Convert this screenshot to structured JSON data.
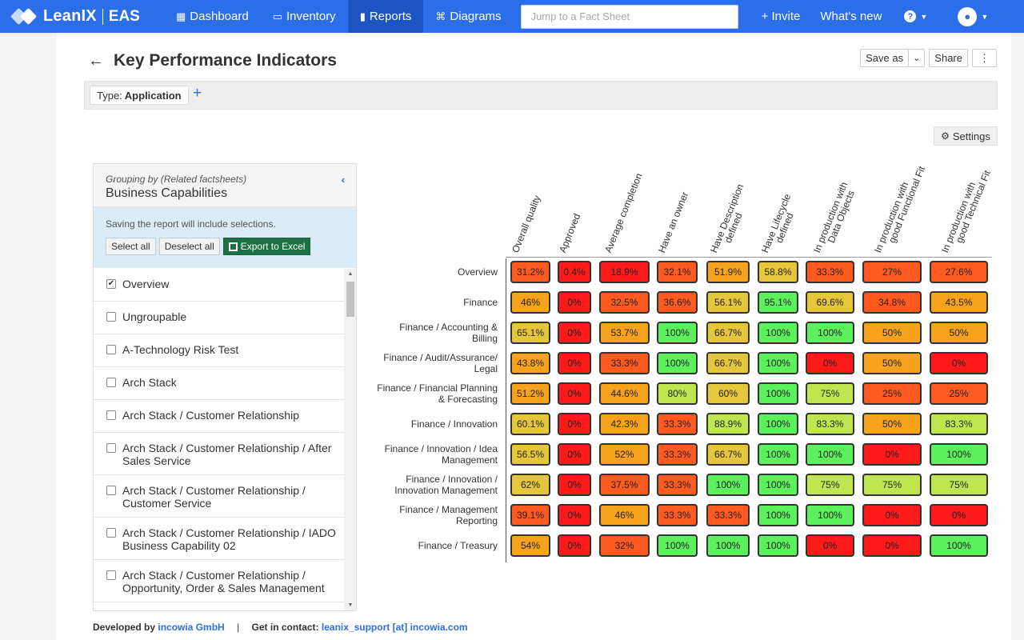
{
  "nav": {
    "brand": "LeanIX",
    "product": "EAS",
    "items": [
      {
        "label": "Dashboard",
        "icon": "dashboard-icon",
        "glyph": "▦"
      },
      {
        "label": "Inventory",
        "icon": "inventory-icon",
        "glyph": "▭"
      },
      {
        "label": "Reports",
        "icon": "reports-icon",
        "glyph": "▮",
        "active": true
      },
      {
        "label": "Diagrams",
        "icon": "diagrams-icon",
        "glyph": "⌘"
      }
    ],
    "search_placeholder": "Jump to a Fact Sheet",
    "invite": "+ Invite",
    "whats_new": "What's new",
    "help": "?"
  },
  "page": {
    "title": "Key Performance Indicators",
    "save_as": "Save as",
    "share": "Share",
    "more": "⋮",
    "filter_type_prefix": "Type:",
    "filter_type_value": "Application",
    "settings": "Settings"
  },
  "panel": {
    "grouping_small": "Grouping by (Related factsheets)",
    "grouping_big": "Business Capabilities",
    "info": "Saving the report will include selections.",
    "select_all": "Select all",
    "deselect_all": "Deselect all",
    "export": "Export to Excel",
    "items": [
      {
        "label": "Overview",
        "checked": true
      },
      {
        "label": "Ungroupable",
        "checked": false
      },
      {
        "label": "A-Technology Risk Test",
        "checked": false
      },
      {
        "label": "Arch Stack",
        "checked": false
      },
      {
        "label": "Arch Stack / Customer Relationship",
        "checked": false
      },
      {
        "label": "Arch Stack / Customer Relationship / After Sales Service",
        "checked": false
      },
      {
        "label": "Arch Stack / Customer Relationship / Customer Service",
        "checked": false
      },
      {
        "label": "Arch Stack / Customer Relationship / IADO Business Capability 02",
        "checked": false
      },
      {
        "label": "Arch Stack / Customer Relationship / Opportunity, Order & Sales Management",
        "checked": false
      }
    ]
  },
  "matrix": {
    "columns": [
      "Overall quality",
      "Approved",
      "Average completion",
      "Have an owner",
      "Have Description defined",
      "Have Lifecycle defined",
      "In production with Data Objects",
      "In production with good Functional Fit",
      "In production with good Technical Fit"
    ],
    "rows": [
      {
        "label": "Overview",
        "values": [
          "31.2%",
          "0.4%",
          "18.9%",
          "32.1%",
          "51.9%",
          "58.8%",
          "33.3%",
          "27%",
          "27.6%"
        ]
      },
      {
        "label": "Finance",
        "values": [
          "46%",
          "0%",
          "32.5%",
          "36.6%",
          "56.1%",
          "95.1%",
          "69.6%",
          "34.8%",
          "43.5%"
        ]
      },
      {
        "label": "Finance / Accounting & Billing",
        "values": [
          "65.1%",
          "0%",
          "53.7%",
          "100%",
          "66.7%",
          "100%",
          "100%",
          "50%",
          "50%"
        ]
      },
      {
        "label": "Finance / Audit/Assurance/ Legal",
        "values": [
          "43.8%",
          "0%",
          "33.3%",
          "100%",
          "66.7%",
          "100%",
          "0%",
          "50%",
          "0%"
        ]
      },
      {
        "label": "Finance / Financial Planning & Forecasting",
        "values": [
          "51.2%",
          "0%",
          "44.6%",
          "80%",
          "60%",
          "100%",
          "75%",
          "25%",
          "25%"
        ]
      },
      {
        "label": "Finance / Innovation",
        "values": [
          "60.1%",
          "0%",
          "42.3%",
          "33.3%",
          "88.9%",
          "100%",
          "83.3%",
          "50%",
          "83.3%"
        ]
      },
      {
        "label": "Finance / Innovation / Idea Management",
        "values": [
          "56.5%",
          "0%",
          "52%",
          "33.3%",
          "66.7%",
          "100%",
          "100%",
          "0%",
          "100%"
        ]
      },
      {
        "label": "Finance / Innovation / Innovation Management",
        "values": [
          "62%",
          "0%",
          "37.5%",
          "33.3%",
          "100%",
          "100%",
          "75%",
          "75%",
          "75%"
        ]
      },
      {
        "label": "Finance / Management Reporting",
        "values": [
          "39.1%",
          "0%",
          "46%",
          "33.3%",
          "33.3%",
          "100%",
          "100%",
          "0%",
          "0%"
        ]
      },
      {
        "label": "Finance / Treasury",
        "values": [
          "54%",
          "0%",
          "32%",
          "100%",
          "100%",
          "100%",
          "0%",
          "0%",
          "100%"
        ]
      }
    ]
  },
  "footer": {
    "dev_prefix": "Developed by",
    "dev_name": "incowia GmbH",
    "separator": "|",
    "contact_prefix": "Get in contact:",
    "contact": "leanix_support [at] incowia.com"
  },
  "colors": {
    "nav_blue": "#2a6ee9",
    "nav_active": "#1d54c3",
    "excel_green": "#1e7145",
    "red": "#ff1a1a",
    "orange_red": "#ff5a1f",
    "orange": "#f6a21c",
    "yellow": "#e6c63a",
    "lime": "#bfe64e",
    "green": "#5cf05c"
  }
}
